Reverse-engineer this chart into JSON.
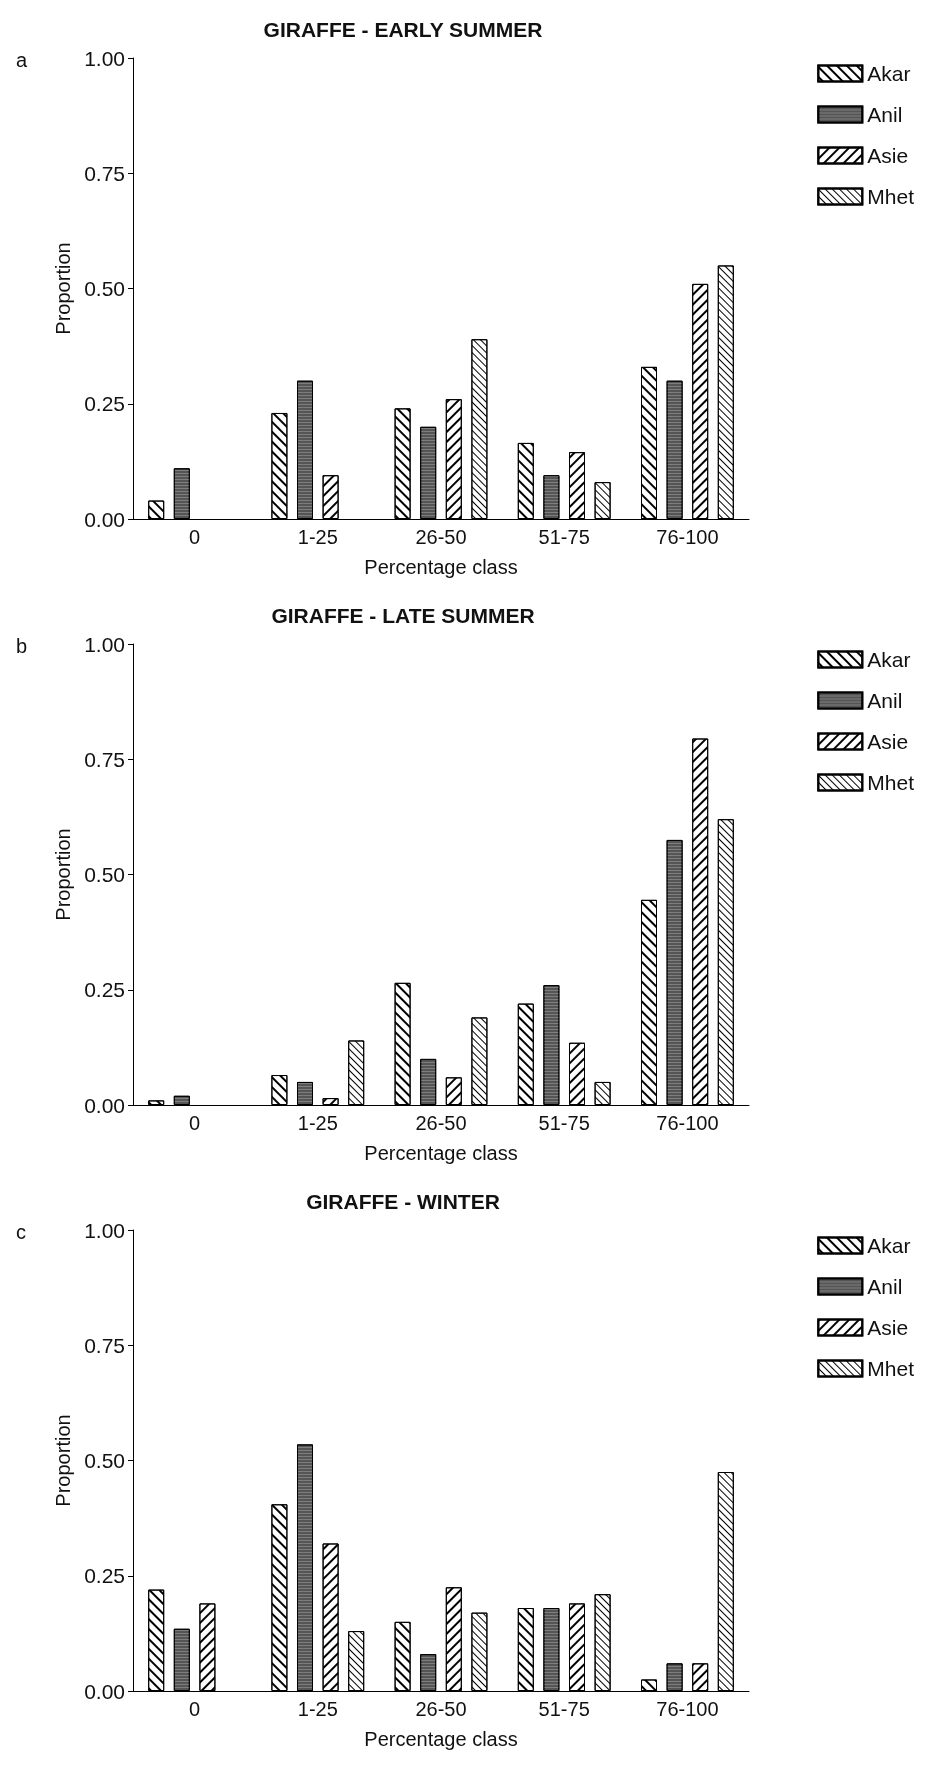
{
  "chart_data": [
    {
      "type": "bar",
      "title": "GIRAFFE - EARLY SUMMER",
      "xlabel": "Percentage class",
      "ylabel": "Proportion",
      "annotations": [
        "a"
      ],
      "categories": [
        "0",
        "1-25",
        "26-50",
        "51-75",
        "76-100"
      ],
      "series": [
        {
          "name": "Akar",
          "color": "#ffffff",
          "values": [
            0.04,
            0.23,
            0.24,
            0.165,
            0.33
          ]
        },
        {
          "name": "Anil",
          "color": "#555555",
          "values": [
            0.11,
            0.3,
            0.2,
            0.095,
            0.3
          ]
        },
        {
          "name": "Asie",
          "color": "#ffffff",
          "values": [
            0,
            0.095,
            0.26,
            0.145,
            0.51
          ]
        },
        {
          "name": "Mhet",
          "color": "#ffffff",
          "values": [
            0,
            0,
            0.39,
            0.08,
            0.55
          ]
        }
      ],
      "ylim": [
        0,
        1
      ],
      "yticks": [
        {
          "value": 0,
          "label": "0.00"
        },
        {
          "value": 0.25,
          "label": "0.25"
        },
        {
          "value": 0.5,
          "label": "0.50"
        },
        {
          "value": 0.75,
          "label": "0.75"
        },
        {
          "value": 1,
          "label": "1.00"
        }
      ],
      "grid": false,
      "legend": "right"
    },
    {
      "type": "bar",
      "title": "GIRAFFE - LATE SUMMER",
      "xlabel": "Percentage class",
      "ylabel": "Proportion",
      "annotations": [
        "b"
      ],
      "categories": [
        "0",
        "1-25",
        "26-50",
        "51-75",
        "76-100"
      ],
      "series": [
        {
          "name": "Akar",
          "color": "#ffffff",
          "values": [
            0.01,
            0.065,
            0.265,
            0.22,
            0.445
          ]
        },
        {
          "name": "Anil",
          "color": "#555555",
          "values": [
            0.02,
            0.05,
            0.1,
            0.26,
            0.575
          ]
        },
        {
          "name": "Asie",
          "color": "#ffffff",
          "values": [
            0,
            0.015,
            0.06,
            0.135,
            0.795
          ]
        },
        {
          "name": "Mhet",
          "color": "#ffffff",
          "values": [
            0,
            0.14,
            0.19,
            0.05,
            0.62
          ]
        }
      ],
      "ylim": [
        0,
        1
      ],
      "yticks": [
        {
          "value": 0,
          "label": "0.00"
        },
        {
          "value": 0.25,
          "label": "0.25"
        },
        {
          "value": 0.5,
          "label": "0.50"
        },
        {
          "value": 0.75,
          "label": "0.75"
        },
        {
          "value": 1,
          "label": "1.00"
        }
      ],
      "grid": false,
      "legend": "right"
    },
    {
      "type": "bar",
      "title": "GIRAFFE - WINTER",
      "xlabel": "Percentage class",
      "ylabel": "Proportion",
      "annotations": [
        "c"
      ],
      "categories": [
        "0",
        "1-25",
        "26-50",
        "51-75",
        "76-100"
      ],
      "series": [
        {
          "name": "Akar",
          "color": "#ffffff",
          "values": [
            0.22,
            0.405,
            0.15,
            0.18,
            0.025
          ]
        },
        {
          "name": "Anil",
          "color": "#555555",
          "values": [
            0.135,
            0.535,
            0.08,
            0.18,
            0.06
          ]
        },
        {
          "name": "Asie",
          "color": "#ffffff",
          "values": [
            0.19,
            0.32,
            0.225,
            0.19,
            0.06
          ]
        },
        {
          "name": "Mhet",
          "color": "#ffffff",
          "values": [
            0,
            0.13,
            0.17,
            0.21,
            0.475
          ]
        }
      ],
      "ylim": [
        0,
        1
      ],
      "yticks": [
        {
          "value": 0,
          "label": "0.00"
        },
        {
          "value": 0.25,
          "label": "0.25"
        },
        {
          "value": 0.5,
          "label": "0.50"
        },
        {
          "value": 0.75,
          "label": "0.75"
        },
        {
          "value": 1,
          "label": "1.00"
        }
      ],
      "grid": false,
      "legend": "right"
    }
  ]
}
